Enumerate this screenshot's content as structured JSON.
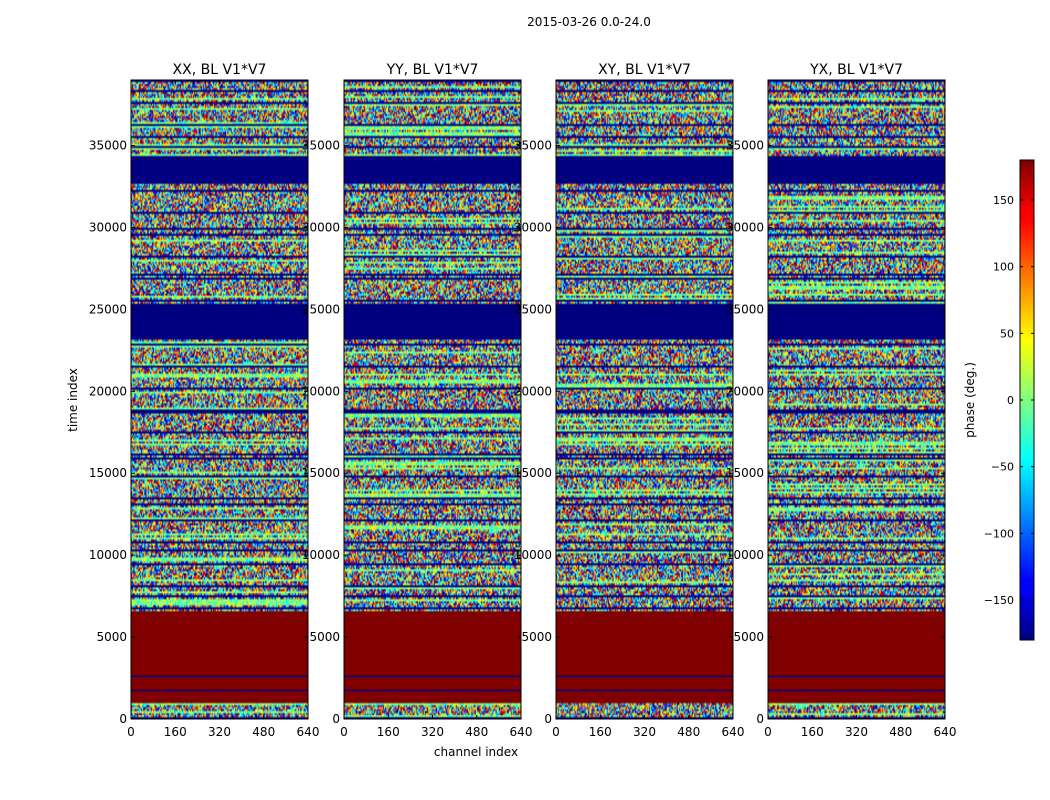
{
  "figure_title": "2015-03-26 0.0-24.0",
  "colors": {
    "low_flag": "#00007f",
    "high_flag": "#7f0000",
    "frame": "#000000"
  },
  "chart_data": {
    "type": "heatmap",
    "title": "2015-03-26 0.0-24.0",
    "xlabel": "channel index",
    "ylabel": "time index",
    "xlim": [
      0,
      640
    ],
    "ylim": [
      0,
      39000
    ],
    "xticks": [
      0,
      160,
      320,
      480,
      640
    ],
    "yticks": [
      0,
      5000,
      10000,
      15000,
      20000,
      25000,
      30000,
      35000
    ],
    "colormap": "jet",
    "panels": [
      {
        "title": "XX, BL V1*V7"
      },
      {
        "title": "YY, BL V1*V7"
      },
      {
        "title": "XY, BL V1*V7"
      },
      {
        "title": "YX, BL V1*V7"
      }
    ],
    "colorbar": {
      "label": "phase (deg.)",
      "range": [
        -180,
        180
      ],
      "ticks": [
        -150,
        -100,
        -50,
        0,
        50,
        100,
        150
      ]
    },
    "flagged_time_ranges": [
      {
        "value": 180,
        "from": 1000,
        "to": 6600
      },
      {
        "value": -180,
        "from": 23100,
        "to": 25300
      },
      {
        "value": -180,
        "from": 32800,
        "to": 34400
      }
    ]
  }
}
